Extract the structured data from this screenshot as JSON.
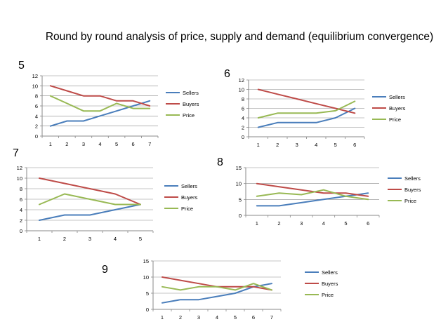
{
  "slide": {
    "title": "Round by round analysis of price, supply and demand (equilibrium convergence)"
  },
  "colors": {
    "sellers": "#4a7ebb",
    "buyers": "#be4b48",
    "price": "#98b954",
    "axis": "#898989",
    "grid": "#898989"
  },
  "chart_data": [
    {
      "label": "5",
      "type": "line",
      "categories": [
        "1",
        "2",
        "3",
        "4",
        "5",
        "6",
        "7"
      ],
      "ylim": [
        0,
        12
      ],
      "ytick_step": 2,
      "grid": true,
      "legend": "right",
      "series": [
        {
          "name": "Sellers",
          "values": [
            2,
            3,
            3,
            4,
            5,
            6,
            7
          ]
        },
        {
          "name": "Buyers",
          "values": [
            10,
            9,
            8,
            8,
            7,
            7,
            6
          ]
        },
        {
          "name": "Price",
          "values": [
            8,
            6.5,
            5,
            5,
            6.5,
            5.5,
            5.5
          ]
        }
      ]
    },
    {
      "label": "6",
      "type": "line",
      "categories": [
        "1",
        "2",
        "3",
        "4",
        "5",
        "6"
      ],
      "ylim": [
        0,
        12
      ],
      "ytick_step": 2,
      "grid": true,
      "legend": "right",
      "series": [
        {
          "name": "Sellers",
          "values": [
            2,
            3,
            3,
            3,
            4,
            6
          ]
        },
        {
          "name": "Buyers",
          "values": [
            10,
            9,
            8,
            7,
            6,
            5
          ]
        },
        {
          "name": "Price",
          "values": [
            4,
            5,
            5,
            5,
            5.5,
            7.5
          ]
        }
      ]
    },
    {
      "label": "7",
      "type": "line",
      "categories": [
        "1",
        "2",
        "3",
        "4",
        "5"
      ],
      "ylim": [
        0,
        12
      ],
      "ytick_step": 2,
      "grid": true,
      "legend": "right",
      "series": [
        {
          "name": "Sellers",
          "values": [
            2,
            3,
            3,
            4,
            5
          ]
        },
        {
          "name": "Buyers",
          "values": [
            10,
            9,
            8,
            7,
            5
          ]
        },
        {
          "name": "Price",
          "values": [
            5,
            7,
            6,
            5,
            5
          ]
        }
      ]
    },
    {
      "label": "8",
      "type": "line",
      "categories": [
        "1",
        "2",
        "3",
        "4",
        "5",
        "6"
      ],
      "ylim": [
        0,
        15
      ],
      "ytick_step": 5,
      "grid": true,
      "legend": "right",
      "series": [
        {
          "name": "Sellers",
          "values": [
            3,
            3,
            4,
            5,
            6,
            7
          ]
        },
        {
          "name": "Buyers",
          "values": [
            10,
            9,
            8,
            7,
            7,
            6
          ]
        },
        {
          "name": "Price",
          "values": [
            6,
            7,
            6.5,
            8,
            6,
            5
          ]
        }
      ]
    },
    {
      "label": "9",
      "type": "line",
      "categories": [
        "1",
        "2",
        "3",
        "4",
        "5",
        "6",
        "7"
      ],
      "ylim": [
        0,
        15
      ],
      "ytick_step": 5,
      "grid": true,
      "legend": "right",
      "series": [
        {
          "name": "Sellers",
          "values": [
            2,
            3,
            3,
            4,
            5,
            7,
            8
          ]
        },
        {
          "name": "Buyers",
          "values": [
            10,
            9,
            8,
            7,
            7,
            7,
            6
          ]
        },
        {
          "name": "Price",
          "values": [
            7,
            6,
            7,
            7,
            6,
            8,
            6
          ]
        }
      ]
    }
  ]
}
